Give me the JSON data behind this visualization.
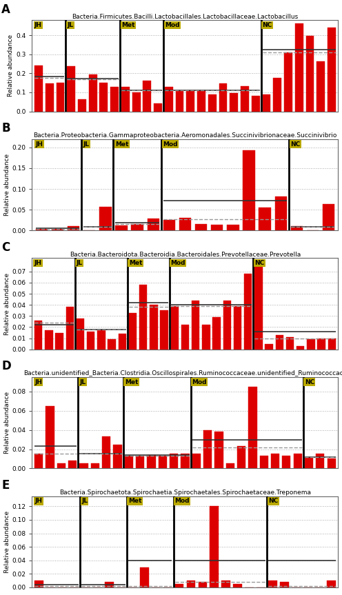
{
  "panels": [
    {
      "label": "A",
      "title": "Bacteria.Firmicutes.Bacilli.Lactobacillales.Lactobacillaceae.Lactobacillus",
      "ylabel": "Relative abundance",
      "ylim": [
        0.0,
        0.48
      ],
      "yticks": [
        0.0,
        0.1,
        0.2,
        0.3,
        0.4
      ],
      "groups": {
        "JH": {
          "values": [
            0.24,
            0.148,
            0.152
          ],
          "mean": 0.185,
          "median": 0.175
        },
        "JL": {
          "values": [
            0.238,
            0.065,
            0.195,
            0.152,
            0.13
          ],
          "mean": 0.172,
          "median": 0.168
        },
        "Met": {
          "values": [
            0.128,
            0.1,
            0.162,
            0.042
          ],
          "mean": 0.11,
          "median": 0.112
        },
        "Mod": {
          "values": [
            0.128,
            0.11,
            0.112,
            0.112,
            0.088,
            0.148,
            0.098,
            0.134,
            0.083
          ],
          "mean": 0.112,
          "median": 0.112
        },
        "NC": {
          "values": [
            0.088,
            0.175,
            0.31,
            0.462,
            0.398,
            0.262,
            0.442
          ],
          "mean": 0.325,
          "median": 0.31
        }
      }
    },
    {
      "label": "B",
      "title": "Bacteria.Proteobacteria.Gammaproteobacteria.Aeromonadales.Succinivibrionaceae.Succinivibrio",
      "ylabel": "Relative abundance",
      "ylim": [
        0.0,
        0.22
      ],
      "yticks": [
        0.0,
        0.05,
        0.1,
        0.15,
        0.2
      ],
      "groups": {
        "JH": {
          "values": [
            0.003,
            0.003,
            0.01
          ],
          "mean": 0.005,
          "median": 0.003
        },
        "JL": {
          "values": [
            0.001,
            0.057
          ],
          "mean": 0.008,
          "median": 0.008
        },
        "Met": {
          "values": [
            0.012,
            0.015,
            0.028
          ],
          "mean": 0.018,
          "median": 0.015
        },
        "Mod": {
          "values": [
            0.025,
            0.03,
            0.015,
            0.014,
            0.013,
            0.193,
            0.055,
            0.082
          ],
          "mean": 0.072,
          "median": 0.027
        },
        "NC": {
          "values": [
            0.01,
            0.001,
            0.064
          ],
          "mean": 0.008,
          "median": 0.008
        }
      }
    },
    {
      "label": "C",
      "title": "Bacteria.Bacteroidota.Bacteroidia.Bacteroidales.Prevotellaceae.Prevotella",
      "ylabel": "Relative abundance",
      "ylim": [
        0.0,
        0.082
      ],
      "yticks": [
        0.0,
        0.01,
        0.02,
        0.03,
        0.04,
        0.05,
        0.06,
        0.07
      ],
      "groups": {
        "JH": {
          "values": [
            0.026,
            0.017,
            0.015,
            0.038
          ],
          "mean": 0.022,
          "median": 0.024
        },
        "JL": {
          "values": [
            0.028,
            0.016,
            0.018,
            0.009,
            0.014
          ],
          "mean": 0.018,
          "median": 0.018
        },
        "Met": {
          "values": [
            0.033,
            0.058,
            0.04,
            0.035
          ],
          "mean": 0.042,
          "median": 0.038
        },
        "Mod": {
          "values": [
            0.039,
            0.022,
            0.044,
            0.022,
            0.029,
            0.044,
            0.039,
            0.068
          ],
          "mean": 0.04,
          "median": 0.039
        },
        "NC": {
          "values": [
            0.076,
            0.005,
            0.013,
            0.011,
            0.003,
            0.009,
            0.01,
            0.01
          ],
          "mean": 0.016,
          "median": 0.01
        }
      }
    },
    {
      "label": "D",
      "title": "Bacteria.unidentified_Bacteria.Clostridia.Oscillospirales.Ruminococcaceae.unidentified_Ruminococcace",
      "ylabel": "Relative abundance",
      "ylim": [
        0.0,
        0.095
      ],
      "yticks": [
        0.0,
        0.02,
        0.04,
        0.06,
        0.08
      ],
      "groups": {
        "JH": {
          "values": [
            0.015,
            0.065,
            0.005,
            0.008
          ],
          "mean": 0.023,
          "median": 0.015
        },
        "JL": {
          "values": [
            0.005,
            0.005,
            0.033,
            0.025
          ],
          "mean": 0.015,
          "median": 0.015
        },
        "Met": {
          "values": [
            0.013,
            0.013,
            0.014,
            0.013,
            0.015,
            0.015
          ],
          "mean": 0.014,
          "median": 0.013
        },
        "Mod": {
          "values": [
            0.015,
            0.04,
            0.038,
            0.005,
            0.023,
            0.085,
            0.013,
            0.015,
            0.013,
            0.015
          ],
          "mean": 0.03,
          "median": 0.022
        },
        "NC": {
          "values": [
            0.012,
            0.015,
            0.01
          ],
          "mean": 0.012,
          "median": 0.012
        }
      }
    },
    {
      "label": "E",
      "title": "Bacteria.Spirochaetota.Spirochaetia.Spirochaetales.Spirochaetaceae.Treponema",
      "ylabel": "Relative abundance",
      "ylim": [
        0.0,
        0.135
      ],
      "yticks": [
        0.0,
        0.02,
        0.04,
        0.06,
        0.08,
        0.1,
        0.12
      ],
      "groups": {
        "JH": {
          "values": [
            0.01,
            0.0,
            0.0,
            0.0
          ],
          "mean": 0.004,
          "median": 0.002
        },
        "JL": {
          "values": [
            0.0,
            0.0,
            0.008,
            0.0
          ],
          "mean": 0.004,
          "median": 0.002
        },
        "Met": {
          "values": [
            0.0,
            0.03,
            0.0,
            0.0
          ],
          "mean": 0.04,
          "median": 0.002
        },
        "Mod": {
          "values": [
            0.005,
            0.01,
            0.008,
            0.12,
            0.01,
            0.005,
            0.0,
            0.0
          ],
          "mean": 0.04,
          "median": 0.008
        },
        "NC": {
          "values": [
            0.01,
            0.008,
            0.0,
            0.0,
            0.0,
            0.01
          ],
          "mean": 0.04,
          "median": 0.002
        }
      }
    }
  ],
  "bar_color": "#DD0000",
  "bar_edge_color": "#DD0000",
  "label_bg_color": "#BBAA00",
  "label_text_color": "black",
  "divider_color": "black",
  "mean_line_color": "#333333",
  "median_line_color": "#999999",
  "fig_width": 4.96,
  "fig_height": 8.63,
  "background_color": "white"
}
